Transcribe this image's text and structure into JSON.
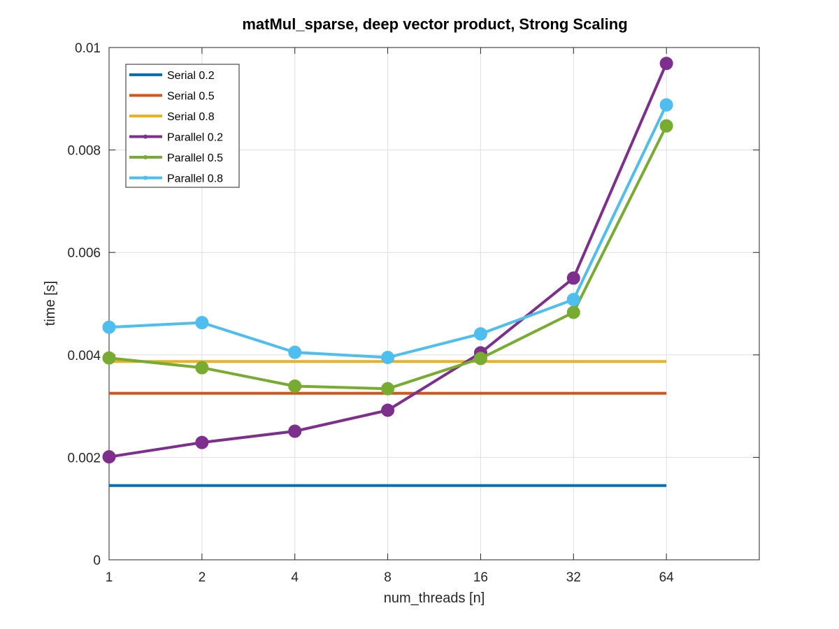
{
  "chart_data": {
    "type": "line",
    "title": "matMul_sparse, deep vector product, Strong Scaling",
    "xlabel": "num_threads [n]",
    "ylabel": "time [s]",
    "x_scale": "log2",
    "x": [
      1,
      2,
      4,
      8,
      16,
      32,
      64
    ],
    "x_tick_labels": [
      "1",
      "2",
      "4",
      "8",
      "16",
      "32",
      "64"
    ],
    "xlim": [
      1,
      128
    ],
    "ylim": [
      0,
      0.01
    ],
    "y_ticks": [
      0,
      0.002,
      0.004,
      0.006,
      0.008,
      0.01
    ],
    "y_tick_labels": [
      "0",
      "0.002",
      "0.004",
      "0.006",
      "0.008",
      "0.01"
    ],
    "grid": true,
    "legend_position": "top-left",
    "series": [
      {
        "name": "Serial 0.2",
        "color": "#0072bd",
        "markers": false,
        "values": [
          0.00145,
          0.00145,
          0.00145,
          0.00145,
          0.00145,
          0.00145,
          0.00145
        ]
      },
      {
        "name": "Serial 0.5",
        "color": "#d95319",
        "markers": false,
        "values": [
          0.00325,
          0.00325,
          0.00325,
          0.00325,
          0.00325,
          0.00325,
          0.00325
        ]
      },
      {
        "name": "Serial 0.8",
        "color": "#edb120",
        "markers": false,
        "values": [
          0.00387,
          0.00387,
          0.00387,
          0.00387,
          0.00387,
          0.00387,
          0.00387
        ]
      },
      {
        "name": "Parallel 0.2",
        "color": "#7e2f8e",
        "markers": true,
        "values": [
          0.00201,
          0.00229,
          0.00251,
          0.00292,
          0.00404,
          0.0055,
          0.00969
        ]
      },
      {
        "name": "Parallel 0.5",
        "color": "#77ac30",
        "markers": true,
        "values": [
          0.00394,
          0.00375,
          0.00339,
          0.00334,
          0.00393,
          0.00483,
          0.00847
        ]
      },
      {
        "name": "Parallel 0.8",
        "color": "#4dbeee",
        "markers": true,
        "values": [
          0.00454,
          0.00463,
          0.00405,
          0.00395,
          0.00441,
          0.00508,
          0.00888
        ]
      }
    ]
  }
}
